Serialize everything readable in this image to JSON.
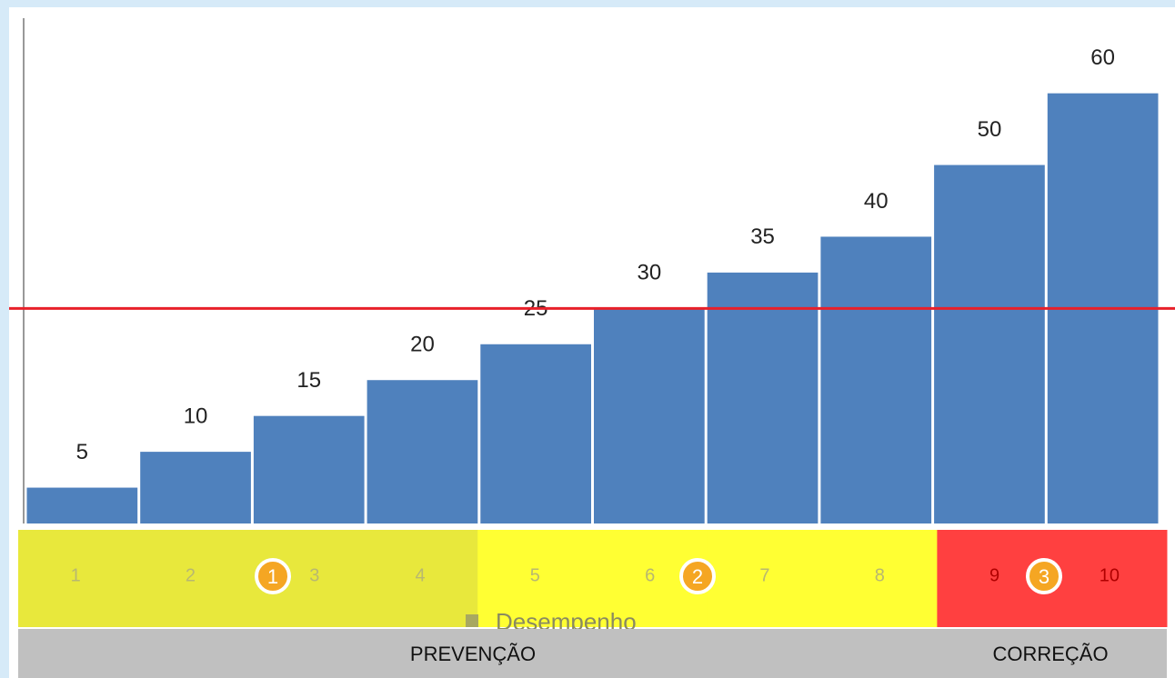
{
  "chart_data": {
    "type": "bar",
    "categories": [
      "1",
      "2",
      "3",
      "4",
      "5",
      "6",
      "7",
      "8",
      "9",
      "10"
    ],
    "values": [
      5,
      10,
      15,
      20,
      25,
      30,
      35,
      40,
      50,
      60
    ],
    "series_name": "Desempenho",
    "color": "#4f81bd",
    "ylim": [
      0,
      72
    ],
    "threshold": 30,
    "threshold_color": "#e8202a",
    "category_colors": [
      "#e8e83c",
      "#e8e83c",
      "#e8e83c",
      "#e8e83c",
      "#ffff33",
      "#ffff33",
      "#ffff33",
      "#ffff33",
      "#ff4040",
      "#ff4040"
    ],
    "markers": [
      "1",
      "2",
      "3"
    ],
    "phases": [
      "PREVENÇÃO",
      "CORREÇÃO"
    ]
  }
}
